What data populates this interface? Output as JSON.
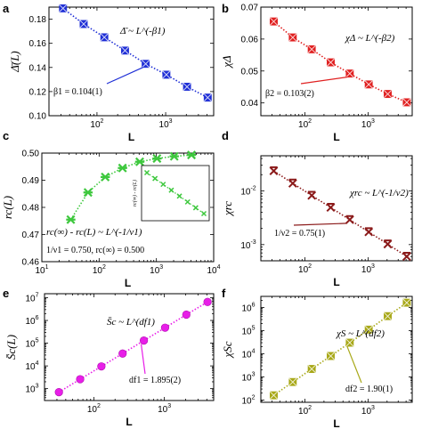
{
  "chart_data": [
    {
      "panel": "a",
      "type": "scatter",
      "xscale": "log",
      "xlim": [
        20,
        5000
      ],
      "ylim": [
        0.1,
        0.19
      ],
      "xticks": [
        "10^2",
        "10^3"
      ],
      "yticks": [
        "0.10",
        "0.12",
        "0.14",
        "0.16",
        "0.18"
      ],
      "xlabel": "L",
      "ylabel": "Δ̄(L)",
      "formula": "Δ̄ ~ L^(-β1)",
      "annotation": "β1 = 0.104(1)",
      "color": "#1f2fd6",
      "x": [
        32,
        64,
        128,
        256,
        512,
        1024,
        2048,
        4096
      ],
      "y": [
        0.189,
        0.176,
        0.165,
        0.154,
        0.143,
        0.134,
        0.124,
        0.115
      ]
    },
    {
      "panel": "b",
      "type": "scatter",
      "xscale": "log",
      "xlim": [
        20,
        5000
      ],
      "ylim": [
        0.036,
        0.07
      ],
      "xticks": [
        "10^2",
        "10^3"
      ],
      "yticks": [
        "0.04",
        "0.05",
        "0.06",
        "0.07"
      ],
      "xlabel": "L",
      "ylabel": "χΔ",
      "formula": "χΔ ~ L^(-β2)",
      "annotation": "β2 = 0.103(2)",
      "color": "#e02020",
      "x": [
        32,
        64,
        128,
        256,
        512,
        1024,
        2048,
        4096
      ],
      "y": [
        0.0655,
        0.0605,
        0.0568,
        0.0527,
        0.0492,
        0.0458,
        0.0428,
        0.0402
      ]
    },
    {
      "panel": "c",
      "type": "scatter",
      "xscale": "log",
      "xlim": [
        10,
        10000
      ],
      "ylim": [
        0.46,
        0.5
      ],
      "xticks": [
        "10^1",
        "10^2",
        "10^3",
        "10^4"
      ],
      "yticks": [
        "0.46",
        "0.47",
        "0.48",
        "0.49",
        "0.50"
      ],
      "xlabel": "L",
      "ylabel": "rc(L)",
      "formula": "rc(∞) - rc(L) ~ L^(-1/ν1)",
      "annotation": "1/ν1 = 0.750, rc(∞) = 0.500",
      "inset_ylabel": "rc(∞) - rc(L)",
      "color": "#3ec83e",
      "x": [
        32,
        64,
        128,
        256,
        512,
        1024,
        2048,
        4096
      ],
      "y": [
        0.4755,
        0.4855,
        0.4912,
        0.4945,
        0.4968,
        0.498,
        0.4988,
        0.4993
      ]
    },
    {
      "panel": "d",
      "type": "scatter",
      "xscale": "log",
      "yscale": "log",
      "xlim": [
        20,
        5000
      ],
      "ylim": [
        0.0005,
        0.045
      ],
      "xticks": [
        "10^2",
        "10^3"
      ],
      "yticks": [
        "10^-3",
        "10^-2"
      ],
      "xlabel": "L",
      "ylabel": "χrc",
      "formula": "χrc ~ L^(-1/ν2)",
      "annotation": "1/ν2 = 0.75(1)",
      "color": "#8b1a1a",
      "x": [
        32,
        64,
        128,
        256,
        512,
        1024,
        2048,
        4096
      ],
      "y": [
        0.0235,
        0.0138,
        0.0082,
        0.0049,
        0.0029,
        0.00172,
        0.00102,
        0.0006
      ]
    },
    {
      "panel": "e",
      "type": "scatter",
      "xscale": "log",
      "yscale": "log",
      "xlim": [
        20,
        5000
      ],
      "ylim": [
        300,
        15000000
      ],
      "xticks": [
        "10^2",
        "10^3"
      ],
      "yticks": [
        "10^3",
        "10^4",
        "10^5",
        "10^6",
        "10^7"
      ],
      "xlabel": "L",
      "ylabel": "S̄c(L)",
      "formula": "S̄c ~ L^(df1)",
      "annotation": "df1 = 1.895(2)",
      "color": "#e81ee8",
      "x": [
        32,
        64,
        128,
        256,
        512,
        1024,
        2048,
        4096
      ],
      "y": [
        700,
        2600,
        9500,
        35000,
        130000,
        480000,
        1800000,
        6500000
      ]
    },
    {
      "panel": "f",
      "type": "scatter",
      "xscale": "log",
      "yscale": "log",
      "xlim": [
        20,
        5000
      ],
      "ylim": [
        80,
        3000000
      ],
      "xticks": [
        "10^2",
        "10^3"
      ],
      "yticks": [
        "10^2",
        "10^3",
        "10^4",
        "10^5",
        "10^6"
      ],
      "xlabel": "L",
      "ylabel": "χSc",
      "formula": "χS ~ L^(df2)",
      "annotation": "df2 = 1.90(1)",
      "color": "#a8a818",
      "x": [
        32,
        64,
        128,
        256,
        512,
        1024,
        2048,
        4096
      ],
      "y": [
        160,
        600,
        2200,
        8000,
        30000,
        110000,
        420000,
        1600000
      ]
    }
  ]
}
